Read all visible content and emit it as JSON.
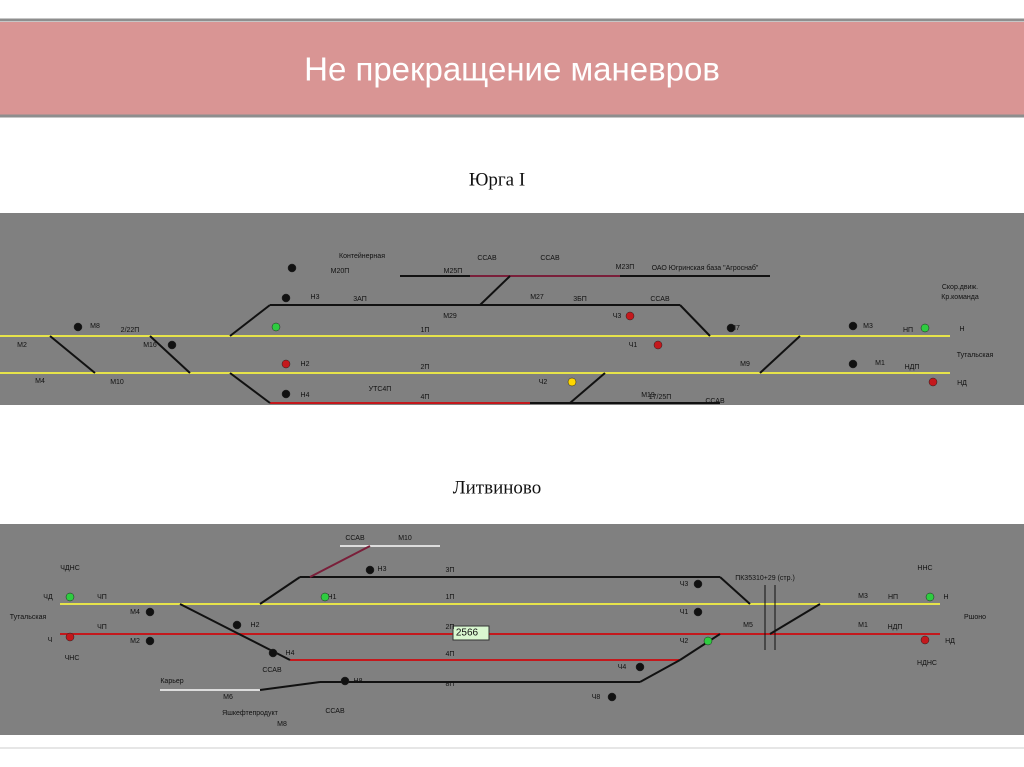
{
  "header": {
    "title": "Не прекращение маневров"
  },
  "stations": [
    {
      "name": "Юрга I",
      "labels": [
        "Контейнерная",
        "М20П",
        "М25П",
        "ССАВ",
        "ССАВ",
        "М23П",
        "ОАО Югринская база \"Агроснаб\"",
        "3АП",
        "3БП",
        "1П",
        "2П",
        "4П",
        "УТС4П",
        "ССАВ",
        "ССАВ",
        "Скор.движ.",
        "Кр.команда",
        "Тутальская",
        "НП",
        "НДП",
        "М3",
        "М1",
        "2/22П",
        "М16",
        "М10",
        "М2",
        "М4",
        "М8",
        "М7",
        "М9",
        "17/25П",
        "Н",
        "НД",
        "Н3",
        "Н2",
        "Н4",
        "М27",
        "М29",
        "М19",
        "Ч1",
        "Ч2",
        "Ч3"
      ]
    },
    {
      "name": "Литвиново",
      "labels": [
        "ССАВ",
        "М10",
        "3П",
        "1П",
        "2П",
        "4П",
        "8П",
        "Н1",
        "Н2",
        "Н3",
        "Н4",
        "Н8",
        "Ч3",
        "Ч1",
        "Ч2",
        "Ч4",
        "Ч8",
        "М5",
        "ЧДНС",
        "ЧД",
        "Ч",
        "ЧНС",
        "Тутальская",
        "ЧП",
        "ЧП",
        "М4",
        "М2",
        "Карьер",
        "Яшкефтепродукт",
        "ССАВ",
        "ССАВ",
        "М6",
        "М8",
        "ННС",
        "НП",
        "НДП",
        "М3",
        "М1",
        "Н",
        "НД",
        "Ршоно",
        "НДНС",
        "ПК35310+29 (стр.)"
      ],
      "train": "2566"
    }
  ]
}
